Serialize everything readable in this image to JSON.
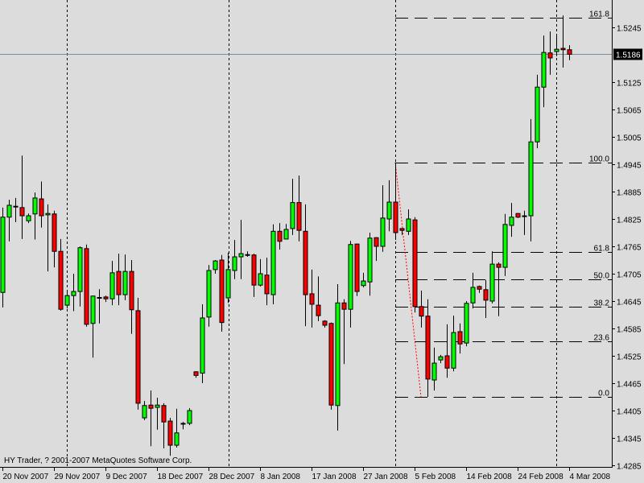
{
  "copyright": "HY Trader, ? 2001-2007 MetaQuotes Software Corp.",
  "colors": {
    "background": "#dcdcdc",
    "bull": "#00ff00",
    "bear": "#ff0000",
    "outline": "#000000",
    "price_line": "#7a8aa0",
    "trendline": "#ff0000"
  },
  "chart_data": {
    "type": "candlestick",
    "title": "",
    "ylim": [
      1.4282,
      1.5305
    ],
    "grid": false,
    "y_ticks": [
      "1.5245",
      "1.5125",
      "1.5065",
      "1.5005",
      "1.4945",
      "1.4885",
      "1.4825",
      "1.4765",
      "1.4705",
      "1.4645",
      "1.4585",
      "1.4525",
      "1.4465",
      "1.4405",
      "1.4345",
      "1.4285"
    ],
    "x_tick_every": 8,
    "x_ticks": [
      "20 Nov 2007",
      "29 Nov 2007",
      "9 Dec 2007",
      "18 Dec 2007",
      "28 Dec 2007",
      "8 Jan 2008",
      "17 Jan 2008",
      "27 Jan 2008",
      "5 Feb 2008",
      "14 Feb 2008",
      "24 Feb 2008",
      "4 Mar 2008"
    ],
    "current_price": "1.5186",
    "period_separators": [
      10,
      35.125,
      61,
      86
    ],
    "ohlc_fields": [
      "open",
      "high",
      "low",
      "close"
    ],
    "candles": [
      [
        1.4664,
        1.485,
        1.4631,
        1.4829
      ],
      [
        1.4829,
        1.4867,
        1.4776,
        1.4855
      ],
      [
        1.4851,
        1.4871,
        1.4818,
        1.4852
      ],
      [
        1.485,
        1.4964,
        1.4781,
        1.4832
      ],
      [
        1.4821,
        1.4837,
        1.4816,
        1.4832
      ],
      [
        1.4836,
        1.4883,
        1.478,
        1.4871
      ],
      [
        1.4869,
        1.4907,
        1.4806,
        1.4832
      ],
      [
        1.4834,
        1.4857,
        1.471,
        1.4837
      ],
      [
        1.4836,
        1.4843,
        1.4719,
        1.4754
      ],
      [
        1.4754,
        1.4781,
        1.4624,
        1.4627
      ],
      [
        1.4636,
        1.4666,
        1.4629,
        1.4657
      ],
      [
        1.4657,
        1.4705,
        1.4623,
        1.4666
      ],
      [
        1.4666,
        1.4765,
        1.4633,
        1.4762
      ],
      [
        1.476,
        1.4769,
        1.4589,
        1.4594
      ],
      [
        1.4596,
        1.4657,
        1.4521,
        1.4656
      ],
      [
        1.4652,
        1.4671,
        1.4596,
        1.4652
      ],
      [
        1.4654,
        1.4657,
        1.4643,
        1.465
      ],
      [
        1.465,
        1.4733,
        1.4636,
        1.4707
      ],
      [
        1.471,
        1.4749,
        1.4636,
        1.4659
      ],
      [
        1.4659,
        1.4747,
        1.4647,
        1.471
      ],
      [
        1.471,
        1.4735,
        1.4573,
        1.4626
      ],
      [
        1.4624,
        1.4652,
        1.4407,
        1.4421
      ],
      [
        1.4389,
        1.4426,
        1.4384,
        1.4416
      ],
      [
        1.4417,
        1.4449,
        1.4327,
        1.441
      ],
      [
        1.4412,
        1.4433,
        1.4363,
        1.4417
      ],
      [
        1.4416,
        1.4421,
        1.4322,
        1.438
      ],
      [
        1.4382,
        1.4389,
        1.4306,
        1.4329
      ],
      [
        1.4329,
        1.4409,
        1.4324,
        1.4356
      ],
      [
        1.4375,
        1.438,
        1.4364,
        1.4376
      ],
      [
        1.4377,
        1.441,
        1.4373,
        1.4405
      ],
      [
        1.449,
        1.4491,
        1.4477,
        1.4482
      ],
      [
        1.4487,
        1.4638,
        1.4465,
        1.4608
      ],
      [
        1.461,
        1.4724,
        1.4589,
        1.4712
      ],
      [
        1.4714,
        1.4735,
        1.4705,
        1.4733
      ],
      [
        1.4735,
        1.4746,
        1.4578,
        1.4598
      ],
      [
        1.4652,
        1.4751,
        1.4641,
        1.4714
      ],
      [
        1.4712,
        1.4779,
        1.4693,
        1.4742
      ],
      [
        1.4742,
        1.4823,
        1.4693,
        1.4749
      ],
      [
        1.4746,
        1.4754,
        1.4742,
        1.4746
      ],
      [
        1.4746,
        1.4749,
        1.4654,
        1.468
      ],
      [
        1.468,
        1.4737,
        1.4677,
        1.4705
      ],
      [
        1.4702,
        1.474,
        1.4636,
        1.4661
      ],
      [
        1.4659,
        1.4813,
        1.4638,
        1.4798
      ],
      [
        1.4798,
        1.4816,
        1.4758,
        1.4776
      ],
      [
        1.4781,
        1.4814,
        1.4781,
        1.4802
      ],
      [
        1.4804,
        1.4913,
        1.479,
        1.4861
      ],
      [
        1.4861,
        1.492,
        1.4776,
        1.48
      ],
      [
        1.4798,
        1.4857,
        1.459,
        1.4659
      ],
      [
        1.4661,
        1.4714,
        1.4587,
        1.4638
      ],
      [
        1.4636,
        1.4699,
        1.4601,
        1.4613
      ],
      [
        1.4601,
        1.4603,
        1.4587,
        1.4592
      ],
      [
        1.4596,
        1.4598,
        1.4407,
        1.4417
      ],
      [
        1.4416,
        1.4682,
        1.4361,
        1.4641
      ],
      [
        1.4641,
        1.4649,
        1.4507,
        1.4627
      ],
      [
        1.4627,
        1.4777,
        1.4587,
        1.4769
      ],
      [
        1.477,
        1.4771,
        1.4656,
        1.4666
      ],
      [
        1.4679,
        1.4707,
        1.4675,
        1.4689
      ],
      [
        1.4687,
        1.4795,
        1.4657,
        1.4783
      ],
      [
        1.4784,
        1.4785,
        1.4733,
        1.4765
      ],
      [
        1.4765,
        1.4899,
        1.4753,
        1.4827
      ],
      [
        1.4825,
        1.491,
        1.4798,
        1.4862
      ],
      [
        1.4862,
        1.4949,
        1.4779,
        1.4795
      ],
      [
        1.4804,
        1.4805,
        1.479,
        1.48
      ],
      [
        1.4798,
        1.4846,
        1.479,
        1.4825
      ],
      [
        1.4823,
        1.4829,
        1.462,
        1.4633
      ],
      [
        1.4633,
        1.4668,
        1.4587,
        1.4612
      ],
      [
        1.4612,
        1.4649,
        1.4435,
        1.4474
      ],
      [
        1.4472,
        1.4543,
        1.4449,
        1.4509
      ],
      [
        1.4516,
        1.4527,
        1.4509,
        1.4523
      ],
      [
        1.4525,
        1.4594,
        1.4477,
        1.4498
      ],
      [
        1.4498,
        1.4613,
        1.4491,
        1.4576
      ],
      [
        1.4578,
        1.4596,
        1.453,
        1.4551
      ],
      [
        1.4553,
        1.4645,
        1.4546,
        1.464
      ],
      [
        1.4641,
        1.4707,
        1.4629,
        1.4675
      ],
      [
        1.4677,
        1.4679,
        1.4663,
        1.4671
      ],
      [
        1.467,
        1.4691,
        1.4608,
        1.4647
      ],
      [
        1.4645,
        1.4754,
        1.464,
        1.4726
      ],
      [
        1.4726,
        1.473,
        1.4612,
        1.4719
      ],
      [
        1.4719,
        1.4836,
        1.47,
        1.4813
      ],
      [
        1.4811,
        1.486,
        1.4786,
        1.4829
      ],
      [
        1.4837,
        1.4838,
        1.4827,
        1.4829
      ],
      [
        1.483,
        1.4843,
        1.479,
        1.4831
      ],
      [
        1.4832,
        1.5044,
        1.4776,
        1.4994
      ],
      [
        1.4994,
        1.5141,
        1.498,
        1.5114
      ],
      [
        1.5114,
        1.5227,
        1.507,
        1.519
      ],
      [
        1.5189,
        1.5236,
        1.5141,
        1.5178
      ],
      [
        1.5192,
        1.5227,
        1.5182,
        1.5197
      ],
      [
        1.5199,
        1.5271,
        1.5157,
        1.5196
      ],
      [
        1.5196,
        1.5206,
        1.5173,
        1.5186
      ]
    ],
    "fibonacci": {
      "start_index": 61,
      "levels": [
        {
          "label": "161.8",
          "price": 1.5266
        },
        {
          "label": "100.0",
          "price": 1.4949
        },
        {
          "label": "61.8",
          "price": 1.4753
        },
        {
          "label": "50.0",
          "price": 1.4692
        },
        {
          "label": "38.2",
          "price": 1.4632
        },
        {
          "label": "23.6",
          "price": 1.4556
        },
        {
          "label": "0.0",
          "price": 1.4435
        }
      ]
    },
    "trendline": {
      "from": {
        "index": 61,
        "price": 1.4949
      },
      "to": {
        "index": 65,
        "price": 1.4435
      }
    }
  }
}
